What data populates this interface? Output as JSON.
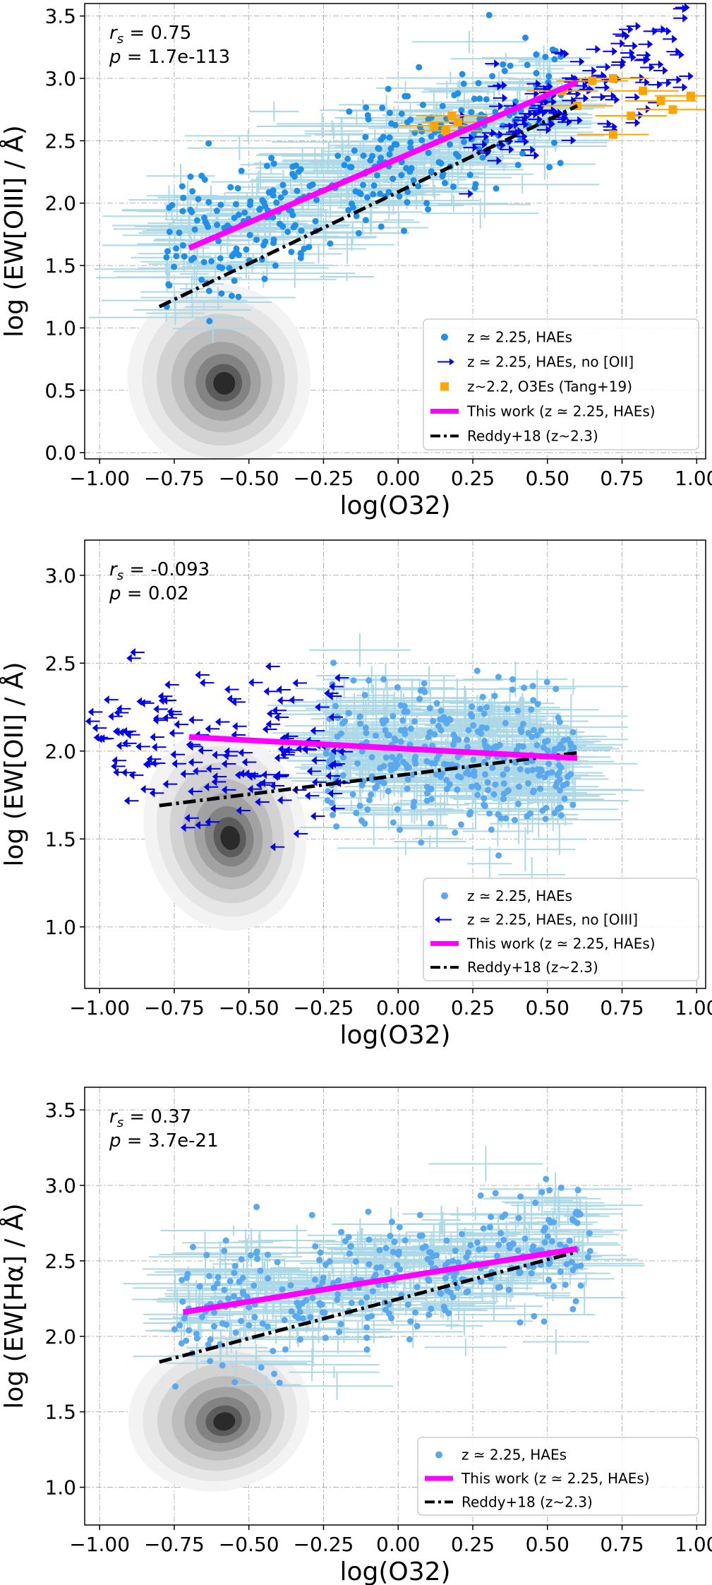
{
  "colors": {
    "hae": "#1f8fe8",
    "hae_light": "#5aa8ee",
    "errbar": "#add8e6",
    "upper": "#0000ee",
    "o3e": "#ffa500",
    "this_work": "#ff00ff",
    "reddy": "#000000",
    "grid": "#b0b0b0"
  },
  "chart_data": [
    {
      "type": "scatter",
      "xlabel": "log(O32)",
      "ylabel": "log (EW[OIII] / Å)",
      "xlim": [
        -1.05,
        1.03
      ],
      "ylim": [
        -0.05,
        3.6
      ],
      "xticks": [
        "−1.00",
        "−0.75",
        "−0.50",
        "−0.25",
        "0.00",
        "0.25",
        "0.50",
        "0.75",
        "1.00"
      ],
      "xtick_values": [
        -1.0,
        -0.75,
        -0.5,
        -0.25,
        0.0,
        0.25,
        0.5,
        0.75,
        1.0
      ],
      "yticks": [
        "0.0",
        "0.5",
        "1.0",
        "1.5",
        "2.0",
        "2.5",
        "3.0",
        "3.5"
      ],
      "ytick_values": [
        0.0,
        0.5,
        1.0,
        1.5,
        2.0,
        2.5,
        3.0,
        3.5
      ],
      "stat_r_symbol": "r",
      "stat_r_sub": "s",
      "stat_r_value": " = 0.75",
      "stat_p_symbol": "p",
      "stat_p_value": " = 1.7e-113",
      "density_center": [
        -0.6,
        0.6
      ],
      "density_spread": [
        0.17,
        0.42
      ],
      "haes_trend": [
        0.95,
        2.35
      ],
      "haes_scatter": 0.26,
      "haes_xrange": [
        -0.78,
        0.55
      ],
      "arrow_direction": "right",
      "arrow_xrange": [
        0.15,
        0.95
      ],
      "o3es": [
        [
          0.12,
          2.62
        ],
        [
          0.16,
          2.58
        ],
        [
          0.2,
          2.65
        ],
        [
          0.55,
          2.9
        ],
        [
          0.65,
          2.98
        ],
        [
          0.72,
          3.0
        ],
        [
          0.78,
          2.7
        ],
        [
          0.82,
          2.9
        ],
        [
          0.88,
          2.82
        ],
        [
          0.92,
          2.75
        ],
        [
          0.6,
          2.78
        ],
        [
          0.98,
          2.86
        ],
        [
          0.72,
          2.55
        ],
        [
          0.18,
          2.7
        ]
      ],
      "legend": [
        {
          "name": "z ≃ 2.25, HAEs",
          "marker": "dot"
        },
        {
          "name": "z ≃ 2.25, HAEs, no [OII]",
          "marker": "arrow-right"
        },
        {
          "name": "z~2.2, O3Es (Tang+19)",
          "marker": "square"
        },
        {
          "name": "This work (z ≃ 2.25, HAEs)",
          "marker": "line-magenta"
        },
        {
          "name": "Reddy+18 (z~2.3)",
          "marker": "line-dashdot"
        }
      ],
      "this_work_line": {
        "x": [
          -0.7,
          0.6
        ],
        "y": [
          1.64,
          2.97
        ]
      },
      "reddy_line": {
        "x": [
          -0.8,
          0.6
        ],
        "y": [
          1.17,
          2.78
        ]
      }
    },
    {
      "type": "scatter",
      "xlabel": "log(O32)",
      "ylabel": "log (EW[OII] / Å)",
      "xlim": [
        -1.05,
        1.03
      ],
      "ylim": [
        0.65,
        3.2
      ],
      "xticks": [
        "−1.00",
        "−0.75",
        "−0.50",
        "−0.25",
        "0.00",
        "0.25",
        "0.50",
        "0.75",
        "1.00"
      ],
      "xtick_values": [
        -1.0,
        -0.75,
        -0.5,
        -0.25,
        0.0,
        0.25,
        0.5,
        0.75,
        1.0
      ],
      "yticks": [
        "1.0",
        "1.5",
        "2.0",
        "2.5",
        "3.0"
      ],
      "ytick_values": [
        1.0,
        1.5,
        2.0,
        2.5,
        3.0
      ],
      "stat_r_symbol": "r",
      "stat_r_sub": "s",
      "stat_r_value": " = -0.093",
      "stat_p_symbol": "p",
      "stat_p_value": " = 0.02",
      "density_center": [
        -0.58,
        1.55
      ],
      "density_spread": [
        0.15,
        0.32
      ],
      "haes_trend": [
        -0.09,
        2.0
      ],
      "haes_scatter": 0.2,
      "haes_xrange": [
        -0.25,
        0.6
      ],
      "arrow_direction": "left",
      "arrow_xrange": [
        -1.0,
        -0.15
      ],
      "o3es": [],
      "legend": [
        {
          "name": "z ≃ 2.25, HAEs",
          "marker": "dot"
        },
        {
          "name": "z ≃ 2.25, HAEs, no [OIII]",
          "marker": "arrow-left"
        },
        {
          "name": "This work (z ≃ 2.25, HAEs)",
          "marker": "line-magenta"
        },
        {
          "name": "Reddy+18 (z~2.3)",
          "marker": "line-dashdot"
        }
      ],
      "this_work_line": {
        "x": [
          -0.7,
          0.6
        ],
        "y": [
          2.08,
          1.96
        ]
      },
      "reddy_line": {
        "x": [
          -0.8,
          0.6
        ],
        "y": [
          1.69,
          1.99
        ]
      }
    },
    {
      "type": "scatter",
      "xlabel": "log(O32)",
      "ylabel": "log (EW[Hα] / Å)",
      "xlim": [
        -1.05,
        1.03
      ],
      "ylim": [
        0.75,
        3.65
      ],
      "xticks": [
        "−1.00",
        "−0.75",
        "−0.50",
        "−0.25",
        "0.00",
        "0.25",
        "0.50",
        "0.75",
        "1.00"
      ],
      "xtick_values": [
        -1.0,
        -0.75,
        -0.5,
        -0.25,
        0.0,
        0.25,
        0.5,
        0.75,
        1.0
      ],
      "yticks": [
        "1.0",
        "1.5",
        "2.0",
        "2.5",
        "3.0",
        "3.5"
      ],
      "ytick_values": [
        1.0,
        1.5,
        2.0,
        2.5,
        3.0,
        3.5
      ],
      "stat_r_symbol": "r",
      "stat_r_sub": "s",
      "stat_r_value": " = 0.37",
      "stat_p_symbol": "p",
      "stat_p_value": " = 3.7e-21",
      "density_center": [
        -0.6,
        1.48
      ],
      "density_spread": [
        0.17,
        0.28
      ],
      "haes_trend": [
        0.33,
        2.4
      ],
      "haes_scatter": 0.2,
      "haes_xrange": [
        -0.75,
        0.65
      ],
      "arrow_direction": "none",
      "arrow_xrange": [
        0,
        0
      ],
      "o3es": [],
      "legend": [
        {
          "name": "z ≃ 2.25, HAEs",
          "marker": "dot"
        },
        {
          "name": "This work (z ≃ 2.25, HAEs)",
          "marker": "line-magenta"
        },
        {
          "name": "Reddy+18 (z~2.3)",
          "marker": "line-dashdot"
        }
      ],
      "this_work_line": {
        "x": [
          -0.72,
          0.6
        ],
        "y": [
          2.16,
          2.58
        ]
      },
      "reddy_line": {
        "x": [
          -0.8,
          0.6
        ],
        "y": [
          1.83,
          2.56
        ]
      }
    }
  ]
}
